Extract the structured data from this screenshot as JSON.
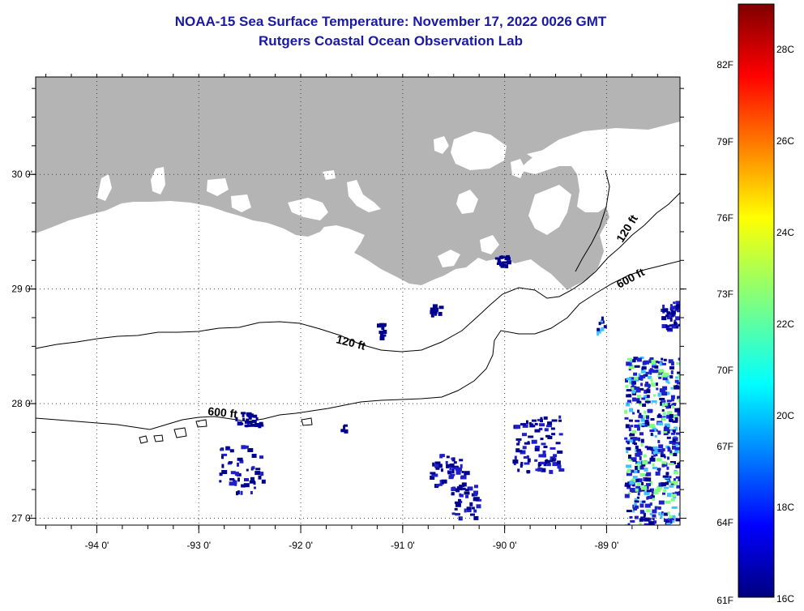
{
  "header": {
    "title": "NOAA-15 Sea Surface Temperature:  November 17, 2022 0026 GMT",
    "subtitle": "Rutgers Coastal Ocean Observation Lab"
  },
  "axes": {
    "lon_ticks": [
      {
        "value": -94,
        "label": "-94 0'"
      },
      {
        "value": -93,
        "label": "-93 0'"
      },
      {
        "value": -92,
        "label": "-92 0'"
      },
      {
        "value": -91,
        "label": "-91 0'"
      },
      {
        "value": -90,
        "label": "-90 0'"
      },
      {
        "value": -89,
        "label": "-89 0'"
      }
    ],
    "lat_ticks": [
      {
        "value": 30,
        "label": "30 0'"
      },
      {
        "value": 29,
        "label": "29 0'"
      },
      {
        "value": 28,
        "label": "28 0'"
      },
      {
        "value": 27,
        "label": "27 0'"
      }
    ],
    "lon_range": [
      -94.6,
      -88.28
    ],
    "lat_range": [
      26.94,
      30.85
    ]
  },
  "contours": [
    {
      "name": "120 ft",
      "label": "120 ft"
    },
    {
      "name": "600 ft",
      "label": "600 ft"
    }
  ],
  "colorbar": {
    "fahrenheit_labels": [
      "82F",
      "79F",
      "76F",
      "73F",
      "70F",
      "67F",
      "64F",
      "61F"
    ],
    "celsius_labels": [
      "28C",
      "26C",
      "24C",
      "22C",
      "20C",
      "18C",
      "16C"
    ],
    "range_c": [
      16,
      29
    ]
  },
  "colors": {
    "land": "#b4b4b4",
    "title": "#1a1aa6",
    "sst_low": "#00008f",
    "sst_mid": "#2020c8",
    "sst_cyan": "#40c0ff",
    "sst_green": "#80ff80"
  }
}
